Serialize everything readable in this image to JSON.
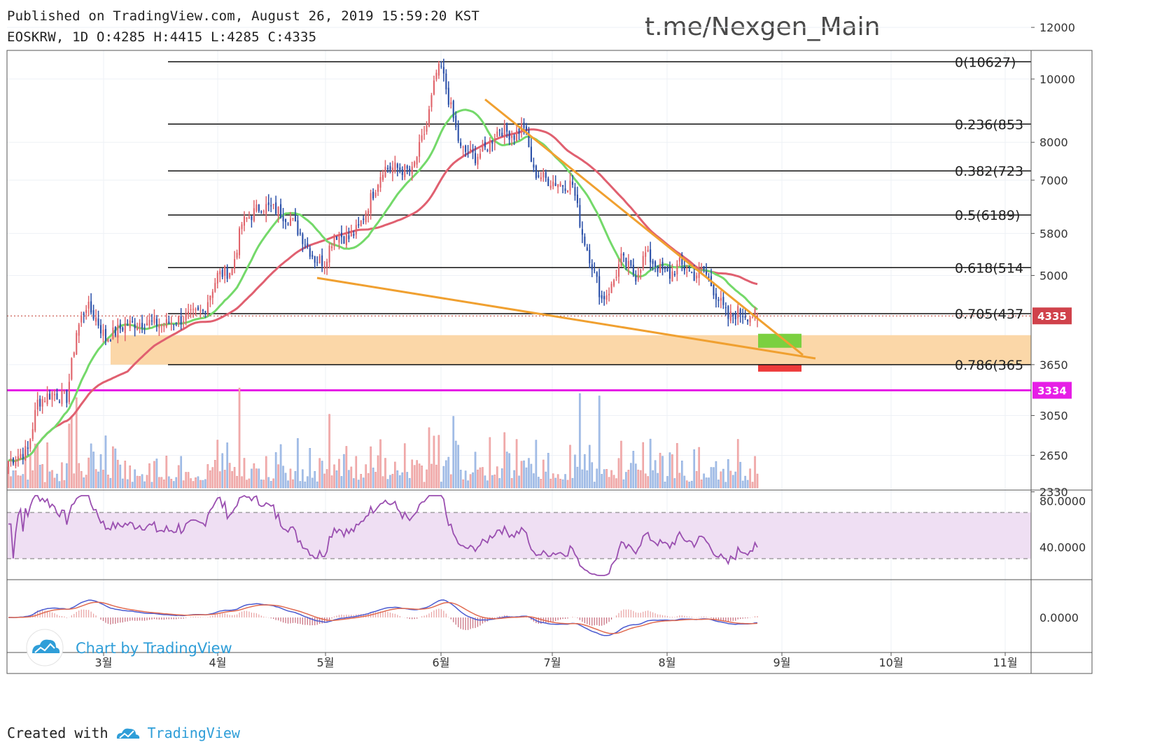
{
  "header": {
    "published_line": "Published on TradingView.com, August 26, 2019 15:59:20 KST",
    "symbol_line": "EOSKRW, 1D O:4285 H:4415 L:4285 C:4335"
  },
  "watermark": "t.me/Nexgen_Main",
  "footer": {
    "created_with": "Created with",
    "brand": "TradingView"
  },
  "overlay_brand": "Chart by TradingView",
  "icons": [
    "tradingview-cloud-icon"
  ],
  "colors": {
    "up": "#e0636a",
    "down": "#2a4fa8",
    "ma_fast": "#74d96a",
    "ma_slow": "#e06070",
    "trendline": "#f0a030",
    "support_zone": "#fbd7a8",
    "support_line": "#e61ee6",
    "rsi_line": "#9a4fb0",
    "rsi_band": "#efdff3",
    "macd": "#4a5ad0",
    "signal": "#e06a50",
    "target_green": "#7bd040",
    "stop_red": "#ee3a3a"
  },
  "chart_data": {
    "type": "candlestick",
    "symbol": "EOSKRW",
    "interval": "1D",
    "ohlc_last": {
      "open": 4285,
      "high": 4415,
      "low": 4285,
      "close": 4335
    },
    "x_axis": {
      "labels": [
        "3월",
        "4월",
        "5월",
        "6월",
        "7월",
        "8월",
        "9월",
        "10월",
        "11월"
      ]
    },
    "y_axis": {
      "scale": "log",
      "ticks": [
        12000,
        10000,
        8000,
        7000,
        5800,
        5000,
        3650,
        3050,
        2650,
        2330
      ],
      "range": [
        2200,
        13000
      ]
    },
    "price_badges": [
      {
        "label": "4335",
        "value": 4335,
        "color": "#d0424b"
      },
      {
        "label": "3334",
        "value": 3334,
        "color": "#e61ee6"
      }
    ],
    "fib_levels": [
      {
        "label": "0(10627)",
        "value": 10627
      },
      {
        "label": "0.236(853",
        "value": 8530
      },
      {
        "label": "0.382(723",
        "value": 7230
      },
      {
        "label": "0.5(6189)",
        "value": 6189
      },
      {
        "label": "0.618(514",
        "value": 5140
      },
      {
        "label": "0.705(437",
        "value": 4370
      },
      {
        "label": "0.786(365",
        "value": 3650
      }
    ],
    "support_zone": [
      3650,
      4050
    ],
    "support_line": 3334,
    "closes_anchor": [
      [
        0,
        2600
      ],
      [
        8,
        2700
      ],
      [
        12,
        3200
      ],
      [
        18,
        3300
      ],
      [
        24,
        3250
      ],
      [
        28,
        4100
      ],
      [
        32,
        4500
      ],
      [
        36,
        4300
      ],
      [
        40,
        4000
      ],
      [
        48,
        4200
      ],
      [
        56,
        4250
      ],
      [
        64,
        4200
      ],
      [
        72,
        4300
      ],
      [
        80,
        4400
      ],
      [
        86,
        5000
      ],
      [
        92,
        5100
      ],
      [
        96,
        6000
      ],
      [
        104,
        6400
      ],
      [
        110,
        6300
      ],
      [
        116,
        6100
      ],
      [
        120,
        5800
      ],
      [
        126,
        5300
      ],
      [
        130,
        5250
      ],
      [
        134,
        5800
      ],
      [
        140,
        5700
      ],
      [
        144,
        5900
      ],
      [
        150,
        6700
      ],
      [
        154,
        7300
      ],
      [
        160,
        7300
      ],
      [
        166,
        7200
      ],
      [
        172,
        8500
      ],
      [
        176,
        10200
      ],
      [
        178,
        10400
      ],
      [
        182,
        9000
      ],
      [
        186,
        7800
      ],
      [
        192,
        7600
      ],
      [
        196,
        7800
      ],
      [
        202,
        8400
      ],
      [
        208,
        8200
      ],
      [
        212,
        8500
      ],
      [
        216,
        7200
      ],
      [
        222,
        7000
      ],
      [
        228,
        6900
      ],
      [
        232,
        6900
      ],
      [
        236,
        5800
      ],
      [
        240,
        5200
      ],
      [
        244,
        4600
      ],
      [
        248,
        4800
      ],
      [
        252,
        5300
      ],
      [
        258,
        5000
      ],
      [
        262,
        5400
      ],
      [
        268,
        5100
      ],
      [
        272,
        5000
      ],
      [
        276,
        5200
      ],
      [
        282,
        5000
      ],
      [
        286,
        5100
      ],
      [
        292,
        4600
      ],
      [
        296,
        4300
      ],
      [
        300,
        4400
      ],
      [
        304,
        4350
      ],
      [
        308,
        4335
      ]
    ],
    "rsi": {
      "ticks": [
        "80.0000",
        "40.0000"
      ],
      "upper_band": 70,
      "lower_band": 30
    },
    "macd": {
      "ticks": [
        "0.0000"
      ]
    }
  }
}
